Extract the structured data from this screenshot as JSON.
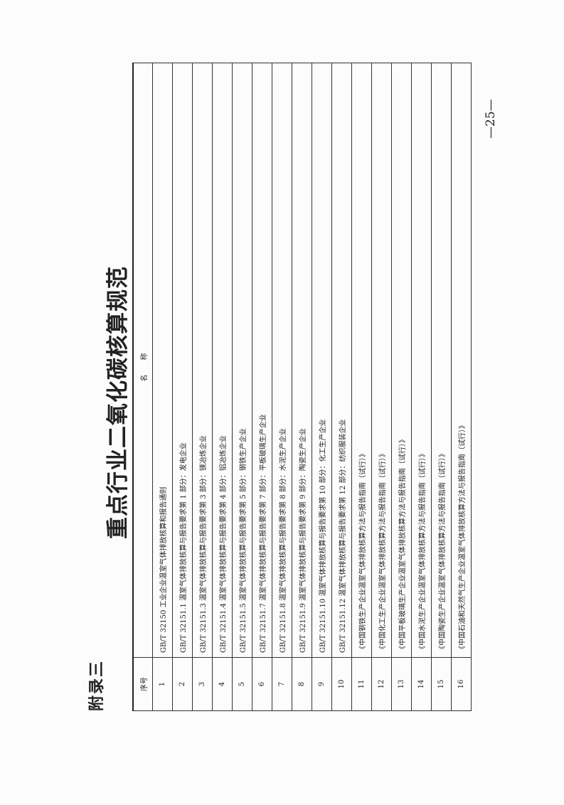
{
  "appendix_label": "附录三",
  "title": "重点行业二氧化碳核算规范",
  "table": {
    "headers": {
      "index": "序号",
      "name": "名称"
    },
    "rows": [
      {
        "index": "1",
        "name": "GB/T 32150 工业企业温室气体排放核算和报告通则"
      },
      {
        "index": "2",
        "name": "GB/T 32151.1 温室气体排放核算与报告要求第 1 部分：发电企业"
      },
      {
        "index": "3",
        "name": "GB/T 32151.3 温室气体排放核算与报告要求第 3 部分：镁冶炼企业"
      },
      {
        "index": "4",
        "name": "GB/T 32151.4 温室气体排放核算与报告要求第 4 部分：铝冶炼企业"
      },
      {
        "index": "5",
        "name": "GB/T 32151.5 温室气体排放核算与报告要求第 5 部分：钢铁生产企业"
      },
      {
        "index": "6",
        "name": "GB/T 32151.7 温室气体排放核算与报告要求第 7 部分：平板玻璃生产企业"
      },
      {
        "index": "7",
        "name": "GB/T 32151.8 温室气体排放核算与报告要求第 8 部分：水泥生产企业"
      },
      {
        "index": "8",
        "name": "GB/T 32151.9 温室气体排放核算与报告要求第 9 部分：陶瓷生产企业"
      },
      {
        "index": "9",
        "name": "GB/T 32151.10 温室气体排放核算与报告要求第 10 部分：化工生产企业"
      },
      {
        "index": "10",
        "name": "GB/T 32151.12 温室气体排放核算与报告要求第 12 部分：纺织服装企业"
      },
      {
        "index": "11",
        "name": "《中国钢铁生产企业温室气体排放核算方法与报告指南（试行）》"
      },
      {
        "index": "12",
        "name": "《中国化工生产企业温室气体排放核算方法与报告指南（试行）》"
      },
      {
        "index": "13",
        "name": "《中国平板玻璃生产企业温室气体排放核算方法与报告指南（试行）》"
      },
      {
        "index": "14",
        "name": "《中国水泥生产企业温室气体排放核算方法与报告指南（试行）》"
      },
      {
        "index": "15",
        "name": "《中国陶瓷生产企业温室气体排放核算方法与报告指南（试行）》"
      },
      {
        "index": "16",
        "name": "《中国石油和天然气生产企业温室气体排放核算方法与报告指南（试行）》"
      }
    ]
  },
  "page_number": "—25—"
}
